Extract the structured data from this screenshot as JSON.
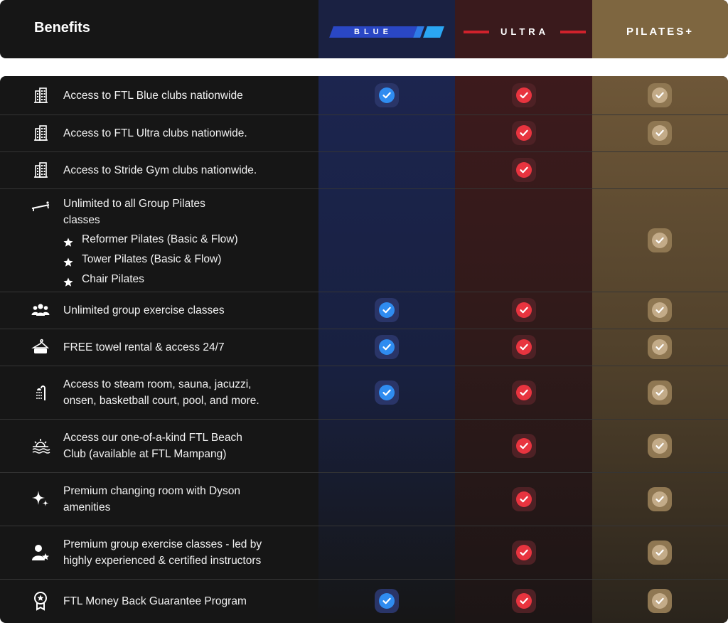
{
  "header": {
    "title": "Benefits",
    "plans": [
      {
        "name": "BLUE",
        "color": "#2a47c4"
      },
      {
        "name": "ULTRA",
        "color": "#d0222c"
      },
      {
        "name": "PILATES+",
        "color": "#7e6640"
      }
    ]
  },
  "rows": [
    {
      "icon": "building-icon",
      "lines": [
        "Access to FTL Blue clubs nationwide"
      ],
      "blue": true,
      "ultra": true,
      "pilates": true
    },
    {
      "icon": "building-icon",
      "lines": [
        "Access to FTL Ultra clubs nationwide."
      ],
      "blue": false,
      "ultra": true,
      "pilates": true
    },
    {
      "icon": "building-icon",
      "lines": [
        "Access to Stride Gym clubs nationwide."
      ],
      "blue": false,
      "ultra": true,
      "pilates": false
    },
    {
      "icon": "reformer-icon",
      "lines": [
        "Unlimited to all Group Pilates",
        "classes"
      ],
      "sub_items": [
        "Reformer Pilates (Basic & Flow)",
        "Tower Pilates (Basic & Flow)",
        "Chair Pilates"
      ],
      "blue": false,
      "ultra": false,
      "pilates": true
    },
    {
      "icon": "group-icon",
      "lines": [
        "Unlimited group exercise classes"
      ],
      "blue": true,
      "ultra": true,
      "pilates": true
    },
    {
      "icon": "towel-hanger-icon",
      "lines": [
        "FREE towel rental & access 24/7"
      ],
      "blue": true,
      "ultra": true,
      "pilates": true
    },
    {
      "icon": "shower-icon",
      "lines": [
        "Access to steam room, sauna, jacuzzi,",
        "onsen, basketball court, pool, and more."
      ],
      "blue": true,
      "ultra": true,
      "pilates": true
    },
    {
      "icon": "beach-sunset-icon",
      "lines": [
        "Access our one-of-a-kind FTL Beach",
        "Club (available at FTL Mampang)"
      ],
      "blue": false,
      "ultra": true,
      "pilates": true
    },
    {
      "icon": "sparkle-icon",
      "lines": [
        "Premium changing room with Dyson",
        "amenities"
      ],
      "blue": false,
      "ultra": true,
      "pilates": true
    },
    {
      "icon": "instructor-star-icon",
      "lines": [
        "Premium group exercise classes - led by",
        "highly experienced & certified instructors"
      ],
      "blue": false,
      "ultra": true,
      "pilates": true
    },
    {
      "icon": "award-badge-icon",
      "lines": [
        "FTL Money Back Guarantee Program"
      ],
      "blue": true,
      "ultra": true,
      "pilates": true
    }
  ]
}
